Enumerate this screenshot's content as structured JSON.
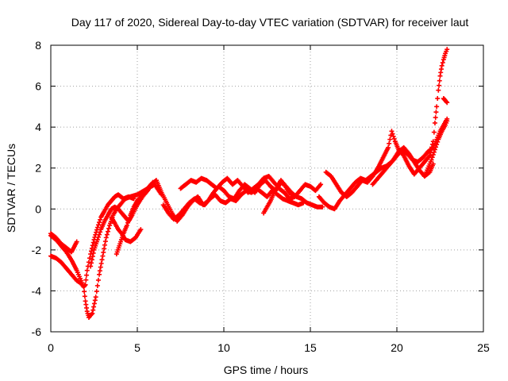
{
  "chart_data": {
    "type": "scatter",
    "title": "Day 117 of 2020, Sidereal Day-to-day VTEC variation (SDTVAR) for receiver laut",
    "xlabel": "GPS time / hours",
    "ylabel": "SDTVAR / TECUs",
    "xlim": [
      0,
      25
    ],
    "ylim": [
      -6,
      8
    ],
    "xticks": [
      "0",
      "5",
      "10",
      "15",
      "20",
      "25"
    ],
    "yticks": [
      "-6",
      "-4",
      "-2",
      "0",
      "2",
      "4",
      "6",
      "8"
    ],
    "grid": true,
    "marker": "+",
    "color": "#ff0000",
    "series": [
      {
        "x": [
          0.0,
          0.3,
          0.6,
          0.9,
          1.2,
          1.5,
          1.7,
          1.9,
          2.0,
          2.1,
          2.2,
          2.4,
          2.6,
          2.8,
          3.0,
          3.2,
          3.4,
          3.6,
          3.8,
          4.0,
          4.3,
          4.6,
          5.0,
          5.4,
          5.8,
          6.0,
          6.4
        ],
        "y": [
          -1.3,
          -1.5,
          -1.8,
          -2.1,
          -2.5,
          -3.0,
          -3.4,
          -3.8,
          -4.5,
          -5.0,
          -5.3,
          -5.1,
          -4.3,
          -3.2,
          -2.3,
          -1.4,
          -0.8,
          -0.3,
          0.0,
          0.2,
          0.5,
          0.6,
          0.7,
          0.9,
          1.1,
          1.2,
          0.7
        ]
      },
      {
        "x": [
          0.0,
          0.3,
          0.6,
          0.9,
          1.1,
          1.3,
          1.5,
          1.7,
          1.9,
          2.0,
          2.1,
          2.3,
          2.5,
          2.7,
          2.9,
          3.1,
          3.3,
          3.5,
          3.7,
          3.9,
          4.2,
          4.5,
          4.8
        ],
        "y": [
          -2.3,
          -2.4,
          -2.6,
          -2.9,
          -3.1,
          -3.3,
          -3.5,
          -3.6,
          -3.8,
          -3.7,
          -3.0,
          -2.2,
          -1.5,
          -0.9,
          -0.4,
          -0.1,
          0.2,
          0.4,
          0.6,
          0.7,
          0.5,
          0.6,
          0.5
        ]
      },
      {
        "x": [
          0.0,
          0.3,
          0.6,
          0.9,
          1.2,
          1.5
        ],
        "y": [
          -1.2,
          -1.4,
          -1.7,
          -1.9,
          -2.1,
          -1.6
        ]
      },
      {
        "x": [
          2.3,
          2.5,
          2.7,
          2.9,
          3.1,
          3.3,
          3.5,
          3.7,
          3.9,
          4.1,
          4.3,
          4.5,
          4.7,
          5.0,
          5.3,
          5.6,
          5.9
        ],
        "y": [
          -2.8,
          -2.0,
          -1.5,
          -1.0,
          -0.6,
          -0.3,
          0.0,
          0.1,
          0.0,
          -0.2,
          -0.4,
          -0.6,
          -0.3,
          0.2,
          0.6,
          0.9,
          1.3
        ]
      },
      {
        "x": [
          3.5,
          3.7,
          3.9,
          4.1,
          4.3,
          4.6,
          4.9,
          5.2
        ],
        "y": [
          -0.4,
          -0.7,
          -1.0,
          -1.2,
          -1.5,
          -1.6,
          -1.4,
          -1.0
        ]
      },
      {
        "x": [
          3.8,
          4.0,
          4.2,
          4.4,
          4.6,
          4.8,
          5.0,
          5.3,
          5.6,
          5.9
        ],
        "y": [
          -2.2,
          -1.7,
          -1.2,
          -0.8,
          -0.3,
          0.1,
          0.4,
          0.7,
          1.0,
          1.3
        ]
      },
      {
        "x": [
          5.5,
          5.8,
          6.1,
          6.4,
          6.7,
          7.0,
          7.3,
          7.6,
          7.9,
          8.2,
          8.5,
          8.8,
          9.1,
          9.4,
          9.7,
          10.0,
          10.3,
          10.6,
          10.9,
          11.2,
          11.5,
          11.8,
          12.1,
          12.4,
          12.7,
          13.0,
          13.3,
          13.6,
          13.9,
          14.2,
          14.5,
          14.8,
          15.1,
          15.4,
          15.7
        ],
        "y": [
          0.9,
          1.2,
          1.4,
          0.8,
          0.3,
          -0.2,
          -0.6,
          -0.3,
          0.1,
          0.4,
          0.6,
          0.2,
          0.4,
          0.8,
          1.1,
          0.9,
          0.6,
          0.5,
          0.9,
          1.2,
          1.0,
          0.8,
          1.2,
          1.4,
          1.1,
          0.9,
          1.3,
          1.1,
          0.8,
          0.6,
          0.5,
          0.3,
          0.2,
          0.1,
          0.1
        ]
      },
      {
        "x": [
          6.5,
          6.8,
          7.1,
          7.4,
          7.7,
          8.0,
          8.3,
          8.6,
          8.9,
          9.2,
          9.5,
          9.8,
          10.1,
          10.4,
          10.7,
          11.0,
          11.3,
          11.6,
          11.9,
          12.2,
          12.5,
          12.8,
          13.1,
          13.4,
          13.7,
          14.0,
          14.3,
          14.6
        ],
        "y": [
          0.2,
          -0.2,
          -0.5,
          -0.3,
          0.0,
          0.3,
          0.5,
          0.3,
          0.2,
          0.5,
          0.7,
          0.4,
          0.3,
          0.5,
          0.4,
          0.7,
          0.9,
          0.8,
          1.0,
          0.8,
          0.6,
          0.9,
          0.7,
          0.5,
          0.4,
          0.3,
          0.2,
          0.3
        ]
      },
      {
        "x": [
          7.5,
          7.8,
          8.1,
          8.4,
          8.7,
          9.0,
          9.3,
          9.6,
          9.9,
          10.2,
          10.5,
          10.8,
          11.1,
          11.4,
          11.7,
          12.0,
          12.3,
          12.6,
          12.9,
          13.2,
          13.5,
          13.8,
          14.1,
          14.4,
          14.7,
          15.0,
          15.3,
          15.6
        ],
        "y": [
          1.0,
          1.2,
          1.4,
          1.3,
          1.5,
          1.4,
          1.2,
          1.0,
          1.3,
          1.5,
          1.2,
          1.4,
          1.1,
          0.8,
          1.0,
          1.2,
          1.5,
          1.6,
          1.3,
          1.0,
          0.8,
          0.5,
          0.6,
          0.9,
          1.2,
          1.1,
          0.9,
          1.2
        ]
      },
      {
        "x": [
          12.3,
          12.5,
          12.7,
          12.9,
          13.1,
          13.3,
          13.5,
          13.7,
          13.9
        ],
        "y": [
          -0.2,
          0.1,
          0.4,
          0.8,
          1.1,
          1.4,
          1.2,
          0.9,
          0.7
        ]
      },
      {
        "x": [
          15.9,
          16.2,
          16.5,
          16.8,
          17.1,
          17.4,
          17.7,
          18.0,
          18.3,
          18.6,
          18.9,
          19.2,
          19.5,
          19.7,
          19.9,
          20.1,
          20.4,
          20.7,
          21.0,
          21.3,
          21.6,
          21.9
        ],
        "y": [
          1.8,
          1.6,
          1.2,
          0.8,
          0.6,
          0.8,
          1.1,
          1.4,
          1.3,
          1.6,
          2.0,
          2.5,
          3.0,
          3.8,
          3.3,
          2.9,
          2.6,
          2.1,
          1.7,
          2.0,
          2.3,
          2.6
        ]
      },
      {
        "x": [
          15.5,
          15.8,
          16.1,
          16.4,
          16.7,
          17.0,
          17.3,
          17.6,
          17.9,
          18.2,
          18.5,
          18.8,
          19.1,
          19.4,
          19.7,
          20.0,
          20.3,
          20.6,
          20.9,
          21.2,
          21.5,
          21.8,
          22.1,
          22.3,
          22.5,
          22.7,
          22.9
        ],
        "y": [
          0.6,
          0.3,
          0.1,
          0.0,
          0.4,
          0.7,
          1.0,
          1.3,
          1.5,
          1.4,
          1.6,
          1.8,
          2.0,
          2.1,
          2.3,
          2.6,
          2.9,
          2.7,
          2.4,
          2.3,
          2.5,
          2.8,
          3.0,
          3.4,
          3.8,
          4.1,
          4.4
        ]
      },
      {
        "x": [
          18.6,
          18.9,
          19.2,
          19.5,
          19.8,
          20.1,
          20.4,
          20.7,
          21.0,
          21.3,
          21.6,
          21.9,
          22.1
        ],
        "y": [
          1.2,
          1.5,
          1.8,
          2.1,
          2.4,
          2.8,
          3.0,
          2.7,
          2.3,
          1.9,
          1.6,
          1.8,
          2.2
        ]
      },
      {
        "x": [
          21.9,
          22.1,
          22.2,
          22.3,
          22.4,
          22.5,
          22.6,
          22.7,
          22.8,
          22.9
        ],
        "y": [
          2.6,
          3.3,
          4.2,
          5.0,
          5.8,
          6.5,
          7.0,
          7.3,
          7.6,
          7.8
        ]
      },
      {
        "x": [
          21.6,
          21.8,
          22.0,
          22.2,
          22.4,
          22.6,
          22.8,
          22.9
        ],
        "y": [
          1.6,
          2.0,
          2.4,
          2.9,
          3.4,
          3.8,
          4.1,
          4.3
        ]
      },
      {
        "x": [
          22.7,
          22.8,
          22.9
        ],
        "y": [
          5.4,
          5.3,
          5.2
        ]
      }
    ]
  }
}
